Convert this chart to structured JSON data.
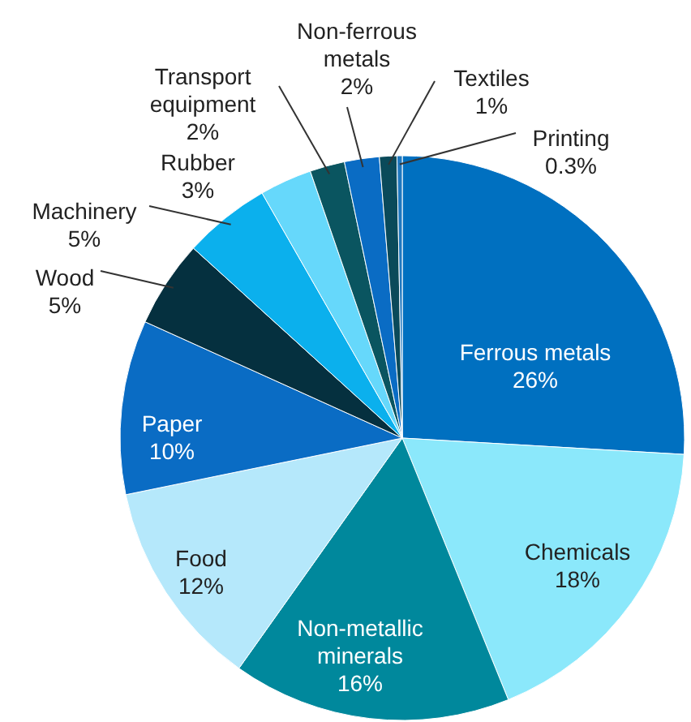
{
  "chart_data": {
    "type": "pie",
    "categories": [
      "Ferrous metals",
      "Chemicals",
      "Non-metallic minerals",
      "Food",
      "Paper",
      "Wood",
      "Machinery",
      "Rubber",
      "Transport equipment",
      "Non-ferrous metals",
      "Textiles",
      "Printing"
    ],
    "values": [
      26,
      18,
      16,
      12,
      10,
      5,
      5,
      3,
      2,
      2,
      1,
      0.3
    ],
    "value_labels": [
      "26%",
      "18%",
      "16%",
      "12%",
      "10%",
      "5%",
      "5%",
      "3%",
      "2%",
      "2%",
      "1%",
      "0.3%"
    ],
    "colors": [
      "#0070c0",
      "#8be8fb",
      "#00889c",
      "#b5e8fb",
      "#0a6cc4",
      "#05303f",
      "#0bb0ed",
      "#66d8fb",
      "#0a5560",
      "#0a6cc4",
      "#0a4a5a",
      "#1f78c0"
    ]
  }
}
